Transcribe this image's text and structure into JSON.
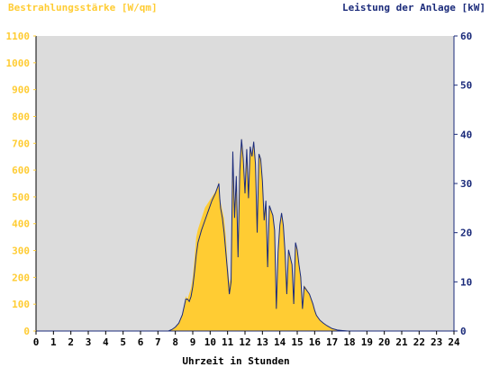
{
  "chart_data": {
    "type": "area",
    "left_axis_title": "Bestrahlungsstärke [W/qm]",
    "right_axis_title": "Leistung der Anlage [kW]",
    "xlabel": "Uhrzeit in Stunden",
    "x_ticks": [
      "0",
      "1",
      "2",
      "3",
      "4",
      "5",
      "6",
      "7",
      "8",
      "9",
      "10",
      "11",
      "12",
      "13",
      "14",
      "15",
      "16",
      "17",
      "18",
      "19",
      "20",
      "21",
      "22",
      "23",
      "24"
    ],
    "xlim": [
      0,
      24
    ],
    "left_ylim": [
      0,
      1100
    ],
    "left_ticks": [
      "0",
      "100",
      "200",
      "300",
      "400",
      "500",
      "600",
      "700",
      "800",
      "900",
      "1000",
      "1100"
    ],
    "right_ylim": [
      0,
      60
    ],
    "right_ticks": [
      "0",
      "10",
      "20",
      "30",
      "40",
      "50",
      "60"
    ],
    "grid": false,
    "colors": {
      "irradiance": "#ffcc33",
      "power": "#1a2a7a",
      "plot_background": "#dcdcdc",
      "left_axis_text": "#ffcc33",
      "right_axis_text": "#1a2a7a",
      "x_axis_text": "#000000"
    },
    "series": [
      {
        "name": "Bestrahlungsstärke [W/qm]",
        "kind": "area",
        "axis": "left",
        "x": [
          0,
          7.6,
          7.8,
          8.0,
          8.2,
          8.4,
          8.6,
          8.7,
          8.8,
          8.9,
          9.0,
          9.1,
          9.2,
          9.3,
          9.5,
          9.7,
          9.9,
          10.1,
          10.3,
          10.45,
          10.5,
          10.55,
          10.6,
          10.7,
          10.8,
          10.9,
          11.0,
          11.1,
          11.2,
          11.3,
          11.4,
          11.5,
          11.6,
          11.7,
          11.8,
          11.9,
          12.0,
          12.1,
          12.2,
          12.3,
          12.4,
          12.5,
          12.6,
          12.7,
          12.8,
          12.9,
          13.0,
          13.1,
          13.2,
          13.3,
          13.4,
          13.5,
          13.6,
          13.7,
          13.8,
          13.9,
          14.0,
          14.1,
          14.2,
          14.3,
          14.4,
          14.5,
          14.6,
          14.7,
          14.8,
          14.9,
          15.0,
          15.1,
          15.2,
          15.3,
          15.4,
          15.5,
          15.6,
          15.7,
          15.8,
          15.9,
          16.0,
          16.1,
          16.2,
          16.3,
          16.5,
          16.7,
          17.0,
          17.3,
          17.6,
          17.9,
          18.2,
          24
        ],
        "values": [
          0,
          0,
          5,
          15,
          30,
          60,
          130,
          120,
          140,
          160,
          200,
          270,
          350,
          380,
          420,
          460,
          480,
          500,
          520,
          540,
          560,
          510,
          480,
          450,
          420,
          350,
          250,
          180,
          200,
          650,
          420,
          580,
          300,
          610,
          720,
          640,
          520,
          680,
          500,
          690,
          650,
          700,
          620,
          380,
          660,
          640,
          560,
          430,
          490,
          250,
          470,
          450,
          430,
          380,
          100,
          300,
          400,
          440,
          400,
          300,
          160,
          300,
          280,
          250,
          120,
          330,
          300,
          250,
          200,
          100,
          170,
          160,
          150,
          140,
          120,
          100,
          80,
          60,
          50,
          40,
          30,
          20,
          10,
          5,
          2,
          0,
          0,
          0
        ],
        "note": ""
      },
      {
        "name": "Leistung der Anlage [kW]",
        "kind": "line",
        "axis": "right",
        "x": [
          0,
          7.6,
          7.8,
          8.0,
          8.2,
          8.4,
          8.6,
          8.7,
          8.8,
          8.9,
          9.0,
          9.1,
          9.2,
          9.3,
          9.5,
          9.7,
          9.9,
          10.1,
          10.3,
          10.45,
          10.5,
          10.55,
          10.6,
          10.7,
          10.8,
          10.9,
          11.0,
          11.1,
          11.2,
          11.3,
          11.4,
          11.5,
          11.6,
          11.7,
          11.8,
          11.9,
          12.0,
          12.1,
          12.2,
          12.3,
          12.4,
          12.5,
          12.6,
          12.7,
          12.8,
          12.9,
          13.0,
          13.1,
          13.2,
          13.3,
          13.4,
          13.5,
          13.6,
          13.7,
          13.8,
          13.9,
          14.0,
          14.1,
          14.2,
          14.3,
          14.4,
          14.5,
          14.6,
          14.7,
          14.8,
          14.9,
          15.0,
          15.1,
          15.2,
          15.3,
          15.4,
          15.5,
          15.6,
          15.7,
          15.8,
          15.9,
          16.0,
          16.1,
          16.2,
          16.3,
          16.5,
          16.7,
          17.0,
          17.3,
          17.6,
          17.9,
          18.2,
          24
        ],
        "values": [
          0,
          0,
          0.3,
          0.8,
          1.6,
          3.3,
          6.5,
          6.5,
          6.0,
          7.0,
          9.0,
          12.0,
          15.5,
          18.0,
          20.5,
          22.5,
          24.5,
          26.5,
          28.0,
          29.5,
          30.0,
          27.0,
          25.0,
          23.0,
          20.0,
          16.0,
          12.0,
          7.5,
          10.0,
          36.5,
          23.0,
          31.5,
          15.0,
          32.5,
          39.0,
          35.0,
          28.0,
          37.0,
          27.0,
          37.5,
          35.5,
          38.5,
          34.0,
          20.0,
          36.0,
          35.0,
          30.5,
          22.5,
          26.5,
          13.0,
          25.5,
          24.5,
          23.5,
          20.5,
          4.5,
          16.0,
          21.5,
          24.0,
          21.5,
          16.0,
          7.5,
          16.5,
          15.0,
          13.5,
          5.5,
          18.0,
          16.5,
          13.5,
          11.0,
          4.5,
          9.0,
          8.5,
          8.0,
          7.5,
          6.5,
          5.5,
          4.2,
          3.2,
          2.7,
          2.2,
          1.6,
          1.1,
          0.5,
          0.2,
          0.1,
          0,
          0,
          0
        ],
        "note": ""
      }
    ]
  }
}
